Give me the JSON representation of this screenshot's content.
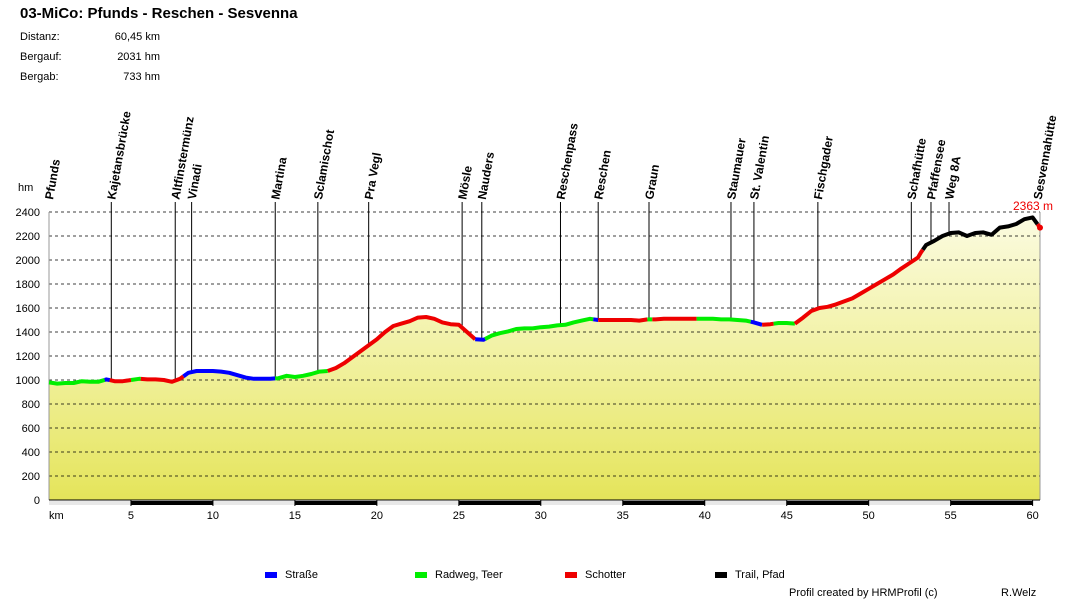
{
  "title": "03-MiCo:  Pfunds - Reschen - Sesvenna",
  "stats": [
    {
      "label": "Distanz:",
      "value": "60,45 km"
    },
    {
      "label": "Bergauf:",
      "value": "2031 hm"
    },
    {
      "label": "Bergab:",
      "value": "733 hm"
    }
  ],
  "legend": [
    {
      "name": "Straße",
      "color": "#0000ff"
    },
    {
      "name": "Radweg, Teer",
      "color": "#00ee00"
    },
    {
      "name": "Schotter",
      "color": "#ee0000"
    },
    {
      "name": "Trail, Pfad",
      "color": "#000000"
    }
  ],
  "credit_left": "Profil created by HRMProfil (c)",
  "credit_right": "R.Welz",
  "chart_data": {
    "type": "area",
    "title": "03-MiCo:  Pfunds - Reschen - Sesvenna",
    "xlabel": "km",
    "ylabel": "hm",
    "xlim": [
      0,
      60.45
    ],
    "ylim": [
      0,
      2400
    ],
    "xticks": [
      5,
      10,
      15,
      20,
      25,
      30,
      35,
      40,
      45,
      50,
      55,
      60
    ],
    "yticks": [
      0,
      200,
      400,
      600,
      800,
      1000,
      1200,
      1400,
      1600,
      1800,
      2000,
      2200,
      2400
    ],
    "grid": true,
    "end_label": "2363 m",
    "profile": [
      [
        0,
        980
      ],
      [
        0.5,
        970
      ],
      [
        1,
        975
      ],
      [
        1.5,
        975
      ],
      [
        2,
        990
      ],
      [
        2.5,
        985
      ],
      [
        3,
        985
      ],
      [
        3.5,
        1005
      ],
      [
        4,
        990
      ],
      [
        4.5,
        990
      ],
      [
        5,
        1000
      ],
      [
        5.5,
        1010
      ],
      [
        6,
        1005
      ],
      [
        6.5,
        1005
      ],
      [
        7,
        1000
      ],
      [
        7.5,
        985
      ],
      [
        8,
        1010
      ],
      [
        8.5,
        1060
      ],
      [
        9,
        1075
      ],
      [
        9.5,
        1075
      ],
      [
        10,
        1075
      ],
      [
        10.5,
        1070
      ],
      [
        11,
        1060
      ],
      [
        11.5,
        1040
      ],
      [
        12,
        1020
      ],
      [
        12.5,
        1010
      ],
      [
        13,
        1010
      ],
      [
        13.5,
        1010
      ],
      [
        14,
        1015
      ],
      [
        14.5,
        1035
      ],
      [
        15,
        1025
      ],
      [
        15.5,
        1035
      ],
      [
        16,
        1050
      ],
      [
        16.5,
        1070
      ],
      [
        17,
        1075
      ],
      [
        17.5,
        1100
      ],
      [
        18,
        1140
      ],
      [
        18.5,
        1190
      ],
      [
        19,
        1240
      ],
      [
        19.5,
        1290
      ],
      [
        20,
        1340
      ],
      [
        20.5,
        1400
      ],
      [
        21,
        1450
      ],
      [
        21.5,
        1470
      ],
      [
        22,
        1490
      ],
      [
        22.5,
        1520
      ],
      [
        23,
        1525
      ],
      [
        23.5,
        1510
      ],
      [
        24,
        1480
      ],
      [
        24.5,
        1465
      ],
      [
        25,
        1460
      ],
      [
        25.5,
        1400
      ],
      [
        26,
        1340
      ],
      [
        26.5,
        1335
      ],
      [
        27,
        1370
      ],
      [
        27.5,
        1390
      ],
      [
        28,
        1405
      ],
      [
        28.5,
        1425
      ],
      [
        29,
        1430
      ],
      [
        29.5,
        1430
      ],
      [
        30,
        1440
      ],
      [
        30.5,
        1445
      ],
      [
        31,
        1455
      ],
      [
        31.5,
        1460
      ],
      [
        32,
        1480
      ],
      [
        32.5,
        1495
      ],
      [
        33,
        1510
      ],
      [
        33.5,
        1500
      ],
      [
        34,
        1500
      ],
      [
        34.5,
        1500
      ],
      [
        35,
        1500
      ],
      [
        35.5,
        1500
      ],
      [
        36,
        1495
      ],
      [
        36.5,
        1505
      ],
      [
        37,
        1505
      ],
      [
        37.5,
        1510
      ],
      [
        38,
        1510
      ],
      [
        38.5,
        1510
      ],
      [
        39,
        1510
      ],
      [
        39.5,
        1510
      ],
      [
        40,
        1510
      ],
      [
        40.5,
        1510
      ],
      [
        41,
        1505
      ],
      [
        41.5,
        1505
      ],
      [
        42,
        1500
      ],
      [
        42.5,
        1495
      ],
      [
        43,
        1480
      ],
      [
        43.5,
        1460
      ],
      [
        44,
        1465
      ],
      [
        44.5,
        1475
      ],
      [
        45,
        1475
      ],
      [
        45.5,
        1470
      ],
      [
        46,
        1520
      ],
      [
        46.5,
        1575
      ],
      [
        47,
        1600
      ],
      [
        47.5,
        1610
      ],
      [
        48,
        1630
      ],
      [
        48.5,
        1655
      ],
      [
        49,
        1680
      ],
      [
        49.5,
        1720
      ],
      [
        50,
        1760
      ],
      [
        50.5,
        1800
      ],
      [
        51,
        1840
      ],
      [
        51.5,
        1880
      ],
      [
        52,
        1930
      ],
      [
        52.5,
        1975
      ],
      [
        53,
        2020
      ],
      [
        53.2,
        2065
      ],
      [
        53.5,
        2125
      ],
      [
        54,
        2160
      ],
      [
        54.5,
        2200
      ],
      [
        55,
        2225
      ],
      [
        55.5,
        2230
      ],
      [
        56,
        2200
      ],
      [
        56.5,
        2225
      ],
      [
        57,
        2230
      ],
      [
        57.5,
        2210
      ],
      [
        58,
        2270
      ],
      [
        58.5,
        2280
      ],
      [
        59,
        2300
      ],
      [
        59.5,
        2340
      ],
      [
        60,
        2355
      ],
      [
        60.45,
        2270
      ]
    ],
    "segments": [
      {
        "type": "Radweg, Teer",
        "from": 0,
        "to": 3.4
      },
      {
        "type": "Straße",
        "from": 3.4,
        "to": 3.7
      },
      {
        "type": "Schotter",
        "from": 3.7,
        "to": 5
      },
      {
        "type": "Radweg, Teer",
        "from": 5,
        "to": 5.6
      },
      {
        "type": "Schotter",
        "from": 5.6,
        "to": 8.2
      },
      {
        "type": "Straße",
        "from": 8.2,
        "to": 13.8
      },
      {
        "type": "Radweg, Teer",
        "from": 13.8,
        "to": 17
      },
      {
        "type": "Schotter",
        "from": 17,
        "to": 26
      },
      {
        "type": "Straße",
        "from": 26,
        "to": 26.6
      },
      {
        "type": "Radweg, Teer",
        "from": 26.6,
        "to": 33.2
      },
      {
        "type": "Straße",
        "from": 33.2,
        "to": 33.5
      },
      {
        "type": "Schotter",
        "from": 33.5,
        "to": 36.5
      },
      {
        "type": "Radweg, Teer",
        "from": 36.5,
        "to": 36.8
      },
      {
        "type": "Schotter",
        "from": 36.8,
        "to": 39.5
      },
      {
        "type": "Radweg, Teer",
        "from": 39.5,
        "to": 42.8
      },
      {
        "type": "Straße",
        "from": 42.8,
        "to": 43.5
      },
      {
        "type": "Schotter",
        "from": 43.5,
        "to": 44.2
      },
      {
        "type": "Radweg, Teer",
        "from": 44.2,
        "to": 45.5
      },
      {
        "type": "Schotter",
        "from": 45.5,
        "to": 53.3
      },
      {
        "type": "Trail, Pfad",
        "from": 53.3,
        "to": 60.3
      },
      {
        "type": "Schotter",
        "from": 60.3,
        "to": 60.45
      }
    ],
    "waypoints": [
      {
        "name": "Pfunds",
        "km": 0,
        "line": false
      },
      {
        "name": "Kajetansbrücke",
        "km": 3.8,
        "line": true
      },
      {
        "name": "Altfinstermünz",
        "km": 7.7,
        "line": true
      },
      {
        "name": "Vinadi",
        "km": 8.7,
        "line": true
      },
      {
        "name": "Martina",
        "km": 13.8,
        "line": true
      },
      {
        "name": "Sclamischot",
        "km": 16.4,
        "line": true
      },
      {
        "name": "Pra Vegl",
        "km": 19.5,
        "line": true
      },
      {
        "name": "Mösle",
        "km": 25.2,
        "line": true
      },
      {
        "name": "Nauders",
        "km": 26.4,
        "line": true
      },
      {
        "name": "Reschenpass",
        "km": 31.2,
        "line": true
      },
      {
        "name": "Reschen",
        "km": 33.5,
        "line": true
      },
      {
        "name": "Graun",
        "km": 36.6,
        "line": true
      },
      {
        "name": "Staumauer",
        "km": 41.6,
        "line": true
      },
      {
        "name": "St. Valentin",
        "km": 43.0,
        "line": true
      },
      {
        "name": "Fischgader",
        "km": 46.9,
        "line": true
      },
      {
        "name": "Schafhütte",
        "km": 52.6,
        "line": true
      },
      {
        "name": "Pfaffensee",
        "km": 53.8,
        "line": true
      },
      {
        "name": "Weg 8A",
        "km": 54.9,
        "line": true
      },
      {
        "name": "Sesvennahütte",
        "km": 60.3,
        "line": false
      }
    ]
  }
}
